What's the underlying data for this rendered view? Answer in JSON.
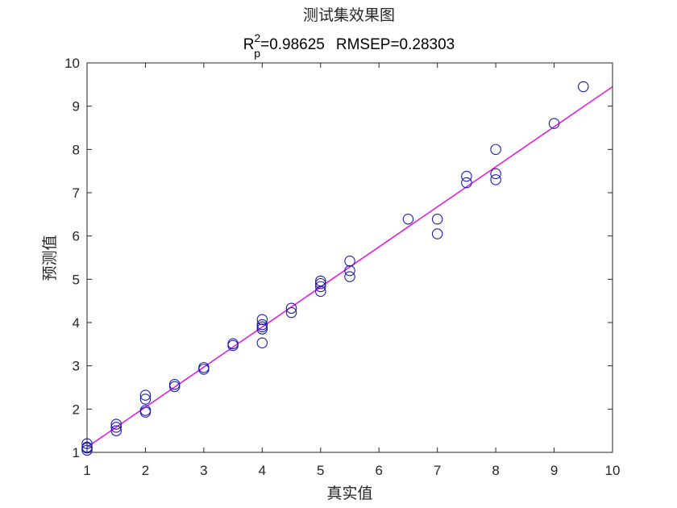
{
  "chart_data": {
    "type": "scatter",
    "title": "测试集效果图",
    "subtitle": {
      "r_symbol": "R",
      "r_sub": "p",
      "r_sup": "2",
      "r2_text": "=0.98625",
      "rmsep_text": "RMSEP=0.28303"
    },
    "xlabel": "真实值",
    "ylabel": "预测值",
    "xlim": [
      1,
      10
    ],
    "ylim": [
      1,
      10
    ],
    "xticks": [
      "1",
      "2",
      "3",
      "4",
      "5",
      "6",
      "7",
      "8",
      "9",
      "10"
    ],
    "yticks": [
      "1",
      "2",
      "3",
      "4",
      "5",
      "6",
      "7",
      "8",
      "9",
      "10"
    ],
    "grid": false,
    "fit_line": {
      "x": [
        1,
        10
      ],
      "y": [
        1.12,
        9.45
      ],
      "color": "#e020e0"
    },
    "marker_color": "#1a1ab0",
    "points": [
      {
        "x": 1,
        "y": 1.05
      },
      {
        "x": 1,
        "y": 1.1
      },
      {
        "x": 1,
        "y": 1.12
      },
      {
        "x": 1,
        "y": 1.2
      },
      {
        "x": 1.5,
        "y": 1.5
      },
      {
        "x": 1.5,
        "y": 1.58
      },
      {
        "x": 1.5,
        "y": 1.65
      },
      {
        "x": 2,
        "y": 1.93
      },
      {
        "x": 2,
        "y": 1.97
      },
      {
        "x": 2,
        "y": 2.23
      },
      {
        "x": 2,
        "y": 2.32
      },
      {
        "x": 2.5,
        "y": 2.52
      },
      {
        "x": 2.5,
        "y": 2.57
      },
      {
        "x": 3,
        "y": 2.92
      },
      {
        "x": 3,
        "y": 2.96
      },
      {
        "x": 3.5,
        "y": 3.47
      },
      {
        "x": 3.5,
        "y": 3.51
      },
      {
        "x": 4,
        "y": 3.53
      },
      {
        "x": 4,
        "y": 3.85
      },
      {
        "x": 4,
        "y": 3.9
      },
      {
        "x": 4,
        "y": 3.95
      },
      {
        "x": 4,
        "y": 4.07
      },
      {
        "x": 4.5,
        "y": 4.23
      },
      {
        "x": 4.5,
        "y": 4.33
      },
      {
        "x": 5,
        "y": 4.72
      },
      {
        "x": 5,
        "y": 4.83
      },
      {
        "x": 5,
        "y": 4.9
      },
      {
        "x": 5,
        "y": 4.96
      },
      {
        "x": 5.5,
        "y": 5.06
      },
      {
        "x": 5.5,
        "y": 5.2
      },
      {
        "x": 5.5,
        "y": 5.42
      },
      {
        "x": 6.5,
        "y": 6.39
      },
      {
        "x": 7,
        "y": 6.05
      },
      {
        "x": 7,
        "y": 6.39
      },
      {
        "x": 7.5,
        "y": 7.23
      },
      {
        "x": 7.5,
        "y": 7.38
      },
      {
        "x": 8,
        "y": 7.3
      },
      {
        "x": 8,
        "y": 7.44
      },
      {
        "x": 8,
        "y": 8.0
      },
      {
        "x": 9,
        "y": 8.6
      },
      {
        "x": 9.5,
        "y": 9.45
      }
    ]
  }
}
